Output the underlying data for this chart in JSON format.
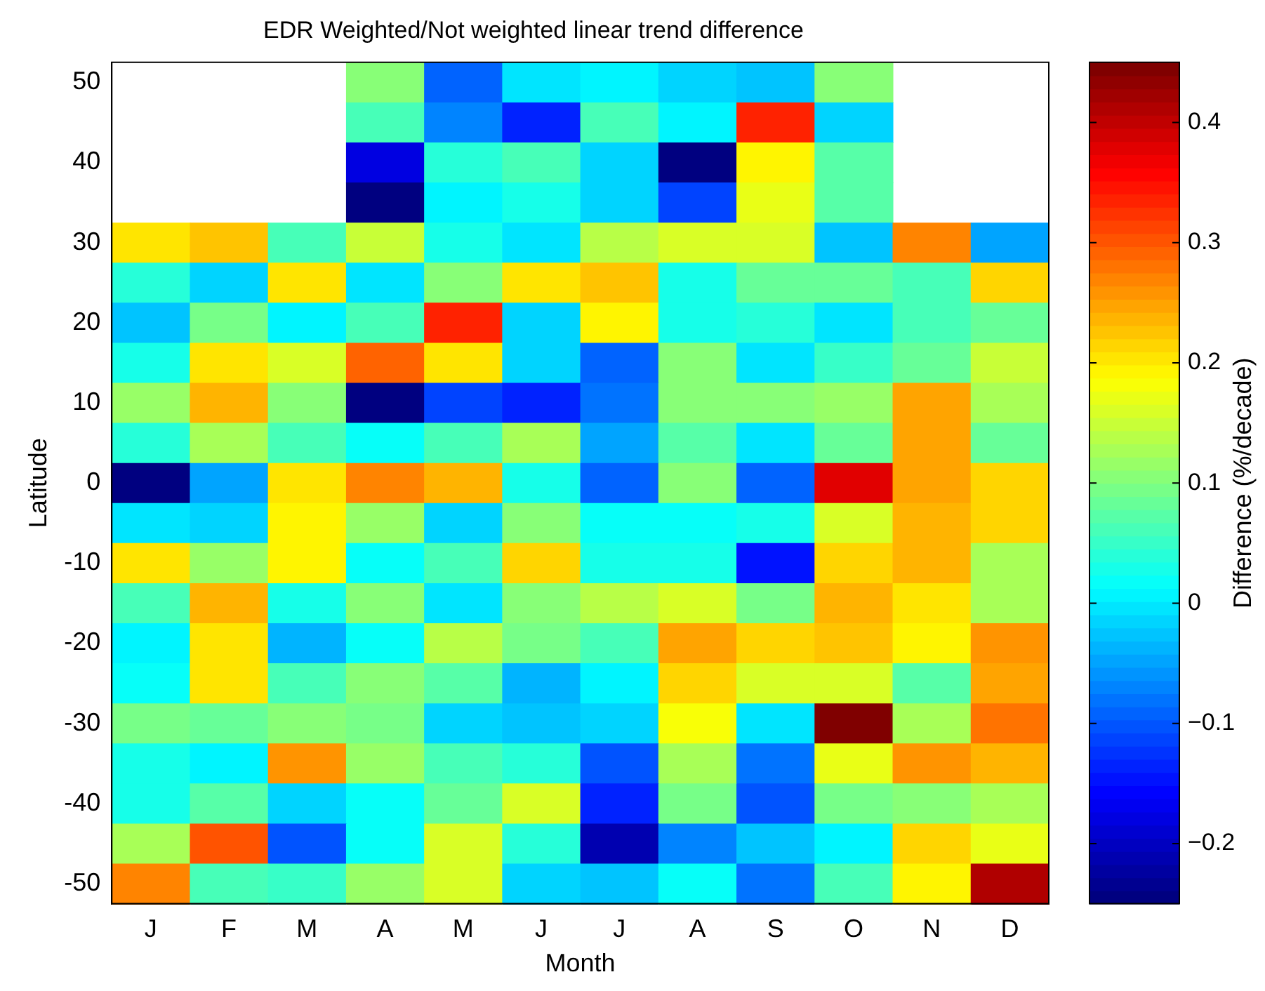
{
  "chart_data": {
    "type": "heatmap",
    "title": "EDR Weighted/Not weighted linear trend difference",
    "xlabel": "Month",
    "ylabel": "Latitude",
    "clabel": "Difference (%/decade)",
    "categories": [
      "J",
      "F",
      "M",
      "A",
      "M",
      "J",
      "J",
      "A",
      "S",
      "O",
      "N",
      "D"
    ],
    "y_categories": [
      "50",
      null,
      "40",
      null,
      "30",
      null,
      "20",
      null,
      "10",
      null,
      "0",
      null,
      "-10",
      null,
      "-20",
      null,
      "-30",
      null,
      "-40",
      null,
      "-50"
    ],
    "cells": [
      [
        null,
        null,
        null,
        0.11,
        -0.09,
        0.0,
        0.01,
        -0.01,
        -0.03,
        0.11,
        null,
        null
      ],
      [
        null,
        null,
        null,
        0.06,
        -0.07,
        -0.13,
        0.06,
        0.01,
        0.33,
        -0.02,
        null,
        null
      ],
      [
        null,
        null,
        null,
        -0.18,
        0.04,
        0.06,
        -0.01,
        -0.24,
        0.19,
        0.07,
        null,
        null
      ],
      [
        null,
        null,
        null,
        -0.25,
        0.01,
        0.03,
        -0.02,
        -0.11,
        0.17,
        0.07,
        null,
        null
      ],
      [
        0.2,
        0.23,
        0.06,
        0.15,
        0.03,
        0.0,
        0.14,
        0.16,
        0.16,
        -0.03,
        0.27,
        -0.05
      ],
      [
        0.04,
        -0.01,
        0.2,
        0.0,
        0.11,
        0.2,
        0.23,
        0.03,
        0.08,
        0.08,
        0.06,
        0.22
      ],
      [
        -0.03,
        0.09,
        0.01,
        0.06,
        0.34,
        -0.02,
        0.19,
        0.03,
        0.04,
        0.0,
        0.06,
        0.08
      ],
      [
        0.03,
        0.2,
        0.16,
        0.29,
        0.2,
        -0.01,
        -0.09,
        0.11,
        0.0,
        0.05,
        0.08,
        0.15
      ],
      [
        0.12,
        0.24,
        0.1,
        -0.25,
        -0.11,
        -0.14,
        -0.08,
        0.11,
        0.11,
        0.12,
        0.25,
        0.13
      ],
      [
        0.04,
        0.13,
        0.06,
        0.02,
        0.06,
        0.13,
        -0.05,
        0.07,
        0.0,
        0.08,
        0.25,
        0.08
      ],
      [
        -0.25,
        -0.05,
        0.2,
        0.27,
        0.24,
        0.03,
        -0.09,
        0.1,
        -0.09,
        0.38,
        0.25,
        0.22
      ],
      [
        0.0,
        -0.01,
        0.19,
        0.12,
        -0.01,
        0.11,
        0.02,
        0.02,
        0.03,
        0.16,
        0.24,
        0.22
      ],
      [
        0.2,
        0.12,
        0.19,
        0.02,
        0.06,
        0.22,
        0.03,
        0.03,
        -0.15,
        0.22,
        0.24,
        0.13
      ],
      [
        0.06,
        0.24,
        0.03,
        0.11,
        0.0,
        0.11,
        0.14,
        0.16,
        0.09,
        0.24,
        0.2,
        0.13
      ],
      [
        0.01,
        0.2,
        -0.04,
        0.02,
        0.14,
        0.09,
        0.06,
        0.25,
        0.21,
        0.23,
        0.19,
        0.26
      ],
      [
        0.02,
        0.2,
        0.06,
        0.11,
        0.07,
        -0.04,
        0.01,
        0.22,
        0.16,
        0.16,
        0.07,
        0.25
      ],
      [
        0.09,
        0.08,
        0.11,
        0.09,
        -0.02,
        -0.03,
        -0.02,
        0.18,
        0.0,
        0.45,
        0.13,
        0.28
      ],
      [
        0.03,
        0.01,
        0.26,
        0.12,
        0.06,
        0.04,
        -0.1,
        0.13,
        -0.08,
        0.17,
        0.26,
        0.24
      ],
      [
        0.03,
        0.07,
        -0.01,
        0.02,
        0.08,
        0.16,
        -0.13,
        0.09,
        -0.1,
        0.09,
        0.11,
        0.13
      ],
      [
        0.13,
        0.3,
        -0.1,
        0.02,
        0.16,
        0.04,
        -0.21,
        -0.07,
        -0.03,
        0.01,
        0.22,
        0.17
      ],
      [
        0.27,
        0.06,
        0.05,
        0.12,
        0.16,
        -0.01,
        -0.03,
        0.02,
        -0.08,
        0.06,
        0.19,
        0.41
      ]
    ],
    "clim": [
      -0.25,
      0.45
    ],
    "cticks": [
      {
        "value": -0.2,
        "label": "−0.2"
      },
      {
        "value": -0.1,
        "label": "−0.1"
      },
      0,
      0.1,
      0.2,
      0.3,
      0.4
    ]
  }
}
